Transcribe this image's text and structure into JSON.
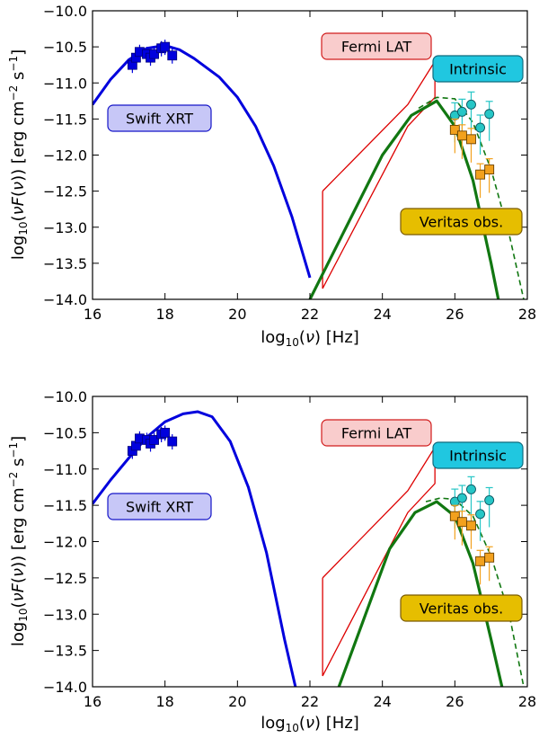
{
  "chart_data": [
    {
      "type": "line",
      "panel": "top",
      "xlabel": "log10(ν) [Hz]",
      "ylabel": "log10(νF(ν)) [erg cm^-2 s^-1]",
      "xlim": [
        16,
        28
      ],
      "ylim": [
        -14.0,
        -10.0
      ],
      "xticks": [
        "16",
        "18",
        "20",
        "22",
        "24",
        "26",
        "28"
      ],
      "yticks": [
        "−10.0",
        "−10.5",
        "−11.0",
        "−11.5",
        "−12.0",
        "−12.5",
        "−13.0",
        "−13.5",
        "−14.0"
      ],
      "annotations": [
        "Swift XRT",
        "Fermi LAT",
        "Intrinsic",
        "Veritas obs."
      ],
      "series": [
        {
          "name": "synchrotron model",
          "color": "#0000dd",
          "x": [
            16.0,
            16.5,
            17.0,
            17.5,
            18.0,
            18.4,
            18.8,
            19.5,
            20.0,
            20.5,
            21.0,
            21.5,
            22.0
          ],
          "y": [
            -11.3,
            -10.95,
            -10.68,
            -10.52,
            -10.48,
            -10.54,
            -10.66,
            -10.92,
            -11.2,
            -11.6,
            -12.15,
            -12.85,
            -13.7
          ]
        },
        {
          "name": "Swift XRT data",
          "color": "#0000dd",
          "x": [
            17.1,
            17.2,
            17.3,
            17.5,
            17.6,
            17.7,
            17.9,
            18.0,
            18.2
          ],
          "y": [
            -10.75,
            -10.65,
            -10.57,
            -10.6,
            -10.65,
            -10.6,
            -10.52,
            -10.5,
            -10.62
          ]
        },
        {
          "name": "Fermi LAT bowtie",
          "color": "#dd0000",
          "x": [
            22.35,
            22.35,
            24.7,
            25.45,
            25.45,
            24.7,
            22.35
          ],
          "y": [
            -12.5,
            -13.85,
            -11.6,
            -11.2,
            -10.7,
            -11.3,
            -12.5
          ]
        },
        {
          "name": "IC model (solid)",
          "color": "#117711",
          "x": [
            22.0,
            23.0,
            24.0,
            24.8,
            25.5,
            26.0,
            26.5,
            27.0,
            27.2
          ],
          "y": [
            -14.0,
            -13.0,
            -12.0,
            -11.45,
            -11.25,
            -11.6,
            -12.35,
            -13.5,
            -14.0
          ]
        },
        {
          "name": "IC model intrinsic (dashed)",
          "color": "#117711",
          "x": [
            25.0,
            25.5,
            26.0,
            26.5,
            27.0,
            27.5,
            27.9
          ],
          "y": [
            -11.35,
            -11.2,
            -11.22,
            -11.55,
            -12.2,
            -13.1,
            -14.0
          ]
        },
        {
          "name": "Intrinsic",
          "color": "#26c6c6",
          "x": [
            26.0,
            26.2,
            26.45,
            26.7,
            26.95
          ],
          "y": [
            -11.45,
            -11.4,
            -11.3,
            -11.62,
            -11.43
          ]
        },
        {
          "name": "Veritas obs.",
          "color": "#f2a11e",
          "x": [
            26.0,
            26.2,
            26.45,
            26.7,
            26.95
          ],
          "y": [
            -11.65,
            -11.73,
            -11.78,
            -12.27,
            -12.2
          ]
        }
      ]
    },
    {
      "type": "line",
      "panel": "bottom",
      "xlabel": "log10(ν) [Hz]",
      "ylabel": "log10(νF(ν)) [erg cm^-2 s^-1]",
      "xlim": [
        16,
        28
      ],
      "ylim": [
        -14.0,
        -10.0
      ],
      "xticks": [
        "16",
        "18",
        "20",
        "22",
        "24",
        "26",
        "28"
      ],
      "yticks": [
        "−10.0",
        "−10.5",
        "−11.0",
        "−11.5",
        "−12.0",
        "−12.5",
        "−13.0",
        "−13.5",
        "−14.0"
      ],
      "annotations": [
        "Swift XRT",
        "Fermi LAT",
        "Intrinsic",
        "Veritas obs."
      ],
      "series": [
        {
          "name": "synchrotron model",
          "color": "#0000dd",
          "x": [
            16.0,
            16.5,
            17.0,
            17.5,
            18.0,
            18.5,
            18.9,
            19.3,
            19.8,
            20.3,
            20.8,
            21.3,
            21.6
          ],
          "y": [
            -11.48,
            -11.15,
            -10.85,
            -10.56,
            -10.35,
            -10.24,
            -10.21,
            -10.28,
            -10.62,
            -11.25,
            -12.15,
            -13.35,
            -14.0
          ]
        },
        {
          "name": "Swift XRT data",
          "color": "#0000dd",
          "x": [
            17.1,
            17.2,
            17.3,
            17.5,
            17.6,
            17.7,
            17.9,
            18.0,
            18.2
          ],
          "y": [
            -10.75,
            -10.68,
            -10.58,
            -10.6,
            -10.65,
            -10.6,
            -10.52,
            -10.5,
            -10.62
          ]
        },
        {
          "name": "Fermi LAT bowtie",
          "color": "#dd0000",
          "x": [
            22.35,
            22.35,
            24.7,
            25.45,
            25.45,
            24.7,
            22.35
          ],
          "y": [
            -12.5,
            -13.85,
            -11.6,
            -11.2,
            -10.7,
            -11.3,
            -12.5
          ]
        },
        {
          "name": "IC model (solid)",
          "color": "#117711",
          "x": [
            22.8,
            23.5,
            24.2,
            24.9,
            25.5,
            26.0,
            26.5,
            27.0,
            27.3
          ],
          "y": [
            -14.0,
            -13.05,
            -12.1,
            -11.6,
            -11.45,
            -11.65,
            -12.3,
            -13.35,
            -14.0
          ]
        },
        {
          "name": "IC model intrinsic (dashed)",
          "color": "#117711",
          "x": [
            25.2,
            25.6,
            26.0,
            26.5,
            27.0,
            27.5,
            27.9
          ],
          "y": [
            -11.45,
            -11.4,
            -11.42,
            -11.65,
            -12.2,
            -13.0,
            -14.0
          ]
        },
        {
          "name": "Intrinsic",
          "color": "#26c6c6",
          "x": [
            26.0,
            26.2,
            26.45,
            26.7,
            26.95
          ],
          "y": [
            -11.45,
            -11.4,
            -11.28,
            -11.62,
            -11.43
          ]
        },
        {
          "name": "Veritas obs.",
          "color": "#f2a11e",
          "x": [
            26.0,
            26.2,
            26.45,
            26.7,
            26.95
          ],
          "y": [
            -11.65,
            -11.73,
            -11.78,
            -12.27,
            -12.22
          ]
        }
      ]
    }
  ]
}
